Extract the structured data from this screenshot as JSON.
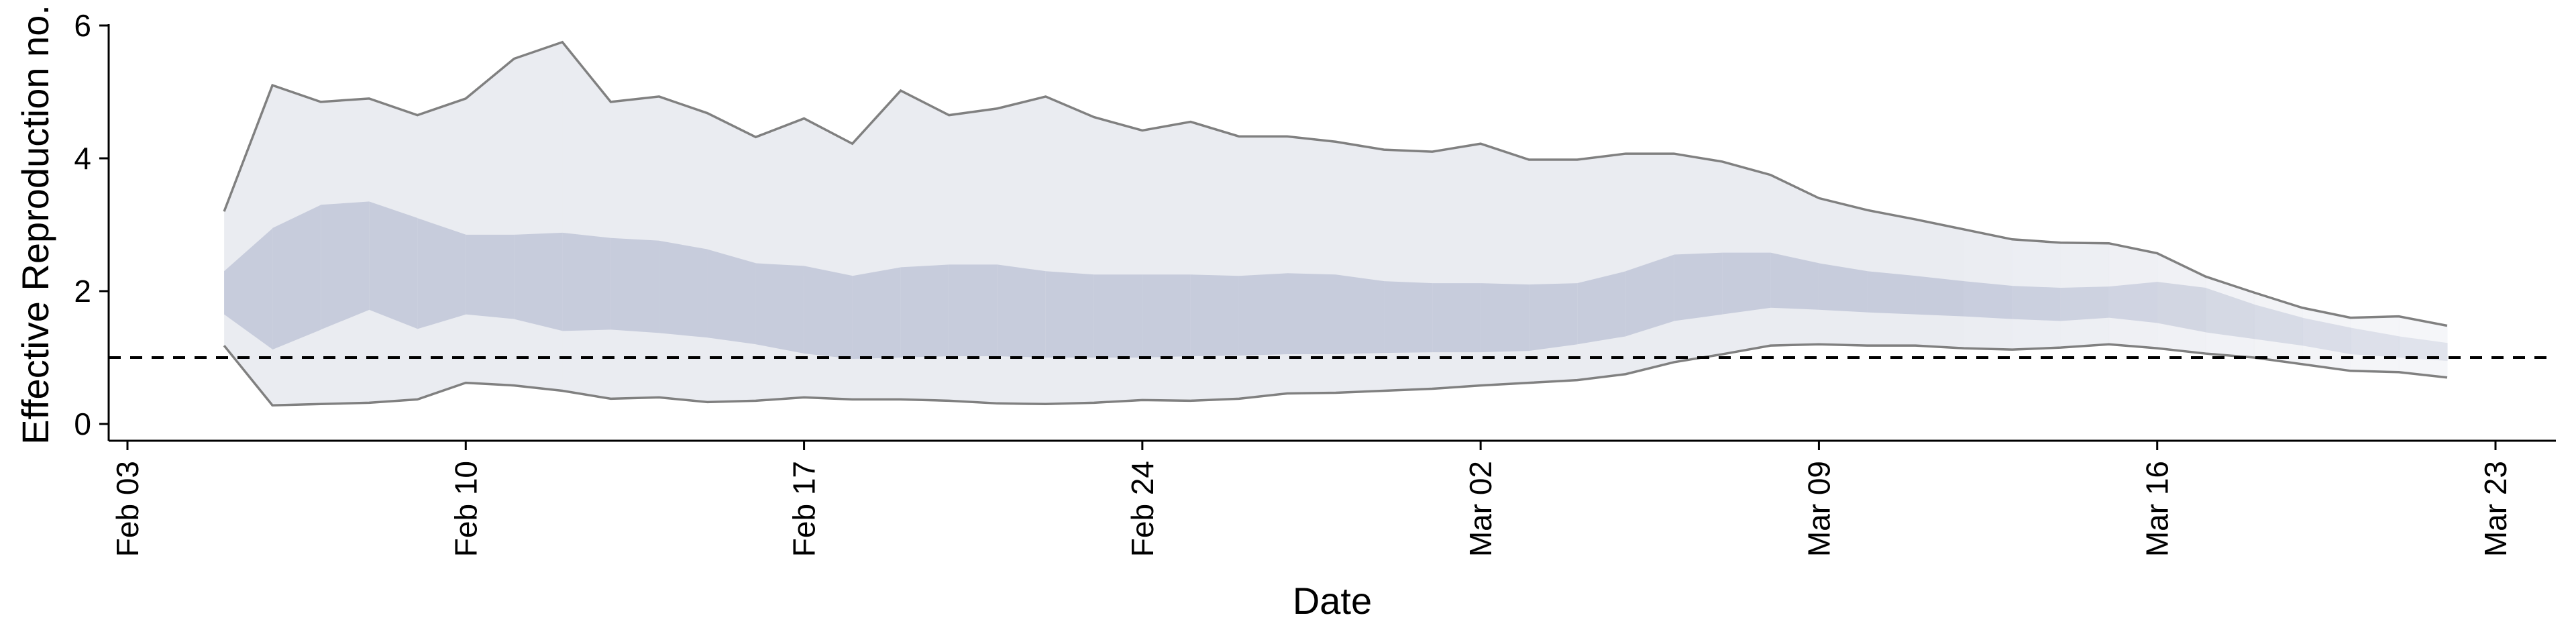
{
  "chart_data": {
    "type": "area",
    "title": "",
    "xlabel": "Date",
    "ylabel": "Effective Reproduction no.",
    "x_axis_type": "date",
    "xlim": [
      "2020-02-03",
      "2020-03-23"
    ],
    "x_ticks": [
      "2020-02-03",
      "2020-02-10",
      "2020-02-17",
      "2020-02-24",
      "2020-03-02",
      "2020-03-09",
      "2020-03-16",
      "2020-03-23"
    ],
    "x_tick_labels": [
      "Feb 03",
      "Feb 10",
      "Feb 17",
      "Feb 24",
      "Mar 02",
      "Mar 09",
      "Mar 16",
      "Mar 23"
    ],
    "ylim": [
      0,
      6
    ],
    "y_ticks": [
      0,
      2,
      4,
      6
    ],
    "y_tick_labels": [
      "0",
      "2",
      "4",
      "6"
    ],
    "grid": false,
    "reference_line": {
      "y": 1,
      "style": "dashed"
    },
    "colors": {
      "outer_band": "#eaecf1",
      "inner_band": "#c7ccdc",
      "bound_line": "#808080",
      "reference": "#000000"
    },
    "dates": [
      "2020-02-05",
      "2020-02-06",
      "2020-02-07",
      "2020-02-08",
      "2020-02-09",
      "2020-02-10",
      "2020-02-11",
      "2020-02-12",
      "2020-02-13",
      "2020-02-14",
      "2020-02-15",
      "2020-02-16",
      "2020-02-17",
      "2020-02-18",
      "2020-02-19",
      "2020-02-20",
      "2020-02-21",
      "2020-02-22",
      "2020-02-23",
      "2020-02-24",
      "2020-02-25",
      "2020-02-26",
      "2020-02-27",
      "2020-02-28",
      "2020-02-29",
      "2020-03-01",
      "2020-03-02",
      "2020-03-03",
      "2020-03-04",
      "2020-03-05",
      "2020-03-06",
      "2020-03-07",
      "2020-03-08",
      "2020-03-09",
      "2020-03-10",
      "2020-03-11",
      "2020-03-12",
      "2020-03-13",
      "2020-03-14",
      "2020-03-15",
      "2020-03-16",
      "2020-03-17",
      "2020-03-18",
      "2020-03-19",
      "2020-03-20",
      "2020-03-21",
      "2020-03-22"
    ],
    "upper_outer": [
      3.2,
      5.1,
      4.85,
      4.9,
      4.65,
      4.9,
      5.5,
      5.75,
      4.85,
      4.93,
      4.68,
      4.32,
      4.6,
      4.22,
      5.02,
      4.65,
      4.75,
      4.93,
      4.62,
      4.42,
      4.55,
      4.33,
      4.33,
      4.25,
      4.13,
      4.1,
      4.22,
      3.98,
      3.98,
      4.07,
      4.07,
      3.95,
      3.75,
      3.4,
      3.22,
      3.08,
      2.93,
      2.78,
      2.73,
      2.72,
      2.57,
      2.22,
      1.98,
      1.75,
      1.6,
      1.62,
      1.48
    ],
    "upper_inner": [
      2.3,
      2.95,
      3.3,
      3.35,
      3.1,
      2.85,
      2.85,
      2.88,
      2.8,
      2.76,
      2.63,
      2.42,
      2.38,
      2.23,
      2.36,
      2.4,
      2.4,
      2.3,
      2.25,
      2.25,
      2.25,
      2.23,
      2.27,
      2.25,
      2.15,
      2.12,
      2.12,
      2.1,
      2.12,
      2.3,
      2.55,
      2.58,
      2.58,
      2.42,
      2.3,
      2.23,
      2.15,
      2.08,
      2.05,
      2.07,
      2.14,
      2.05,
      1.8,
      1.6,
      1.45,
      1.32,
      1.22
    ],
    "lower_inner": [
      1.65,
      1.12,
      1.42,
      1.72,
      1.43,
      1.65,
      1.58,
      1.4,
      1.42,
      1.37,
      1.3,
      1.2,
      1.06,
      0.98,
      1.0,
      1.02,
      1.02,
      1.0,
      1.0,
      1.0,
      1.02,
      1.03,
      1.05,
      1.05,
      1.07,
      1.08,
      1.08,
      1.1,
      1.2,
      1.32,
      1.55,
      1.65,
      1.75,
      1.72,
      1.68,
      1.65,
      1.62,
      1.58,
      1.55,
      1.6,
      1.52,
      1.38,
      1.28,
      1.18,
      1.05,
      1.0,
      0.95
    ],
    "lower_outer": [
      1.18,
      0.28,
      0.3,
      0.32,
      0.37,
      0.62,
      0.58,
      0.5,
      0.38,
      0.4,
      0.33,
      0.35,
      0.4,
      0.37,
      0.37,
      0.35,
      0.31,
      0.3,
      0.32,
      0.36,
      0.35,
      0.38,
      0.46,
      0.47,
      0.5,
      0.53,
      0.58,
      0.62,
      0.66,
      0.75,
      0.93,
      1.05,
      1.18,
      1.2,
      1.18,
      1.18,
      1.14,
      1.12,
      1.15,
      1.2,
      1.14,
      1.06,
      1.0,
      0.9,
      0.8,
      0.78,
      0.7
    ]
  }
}
